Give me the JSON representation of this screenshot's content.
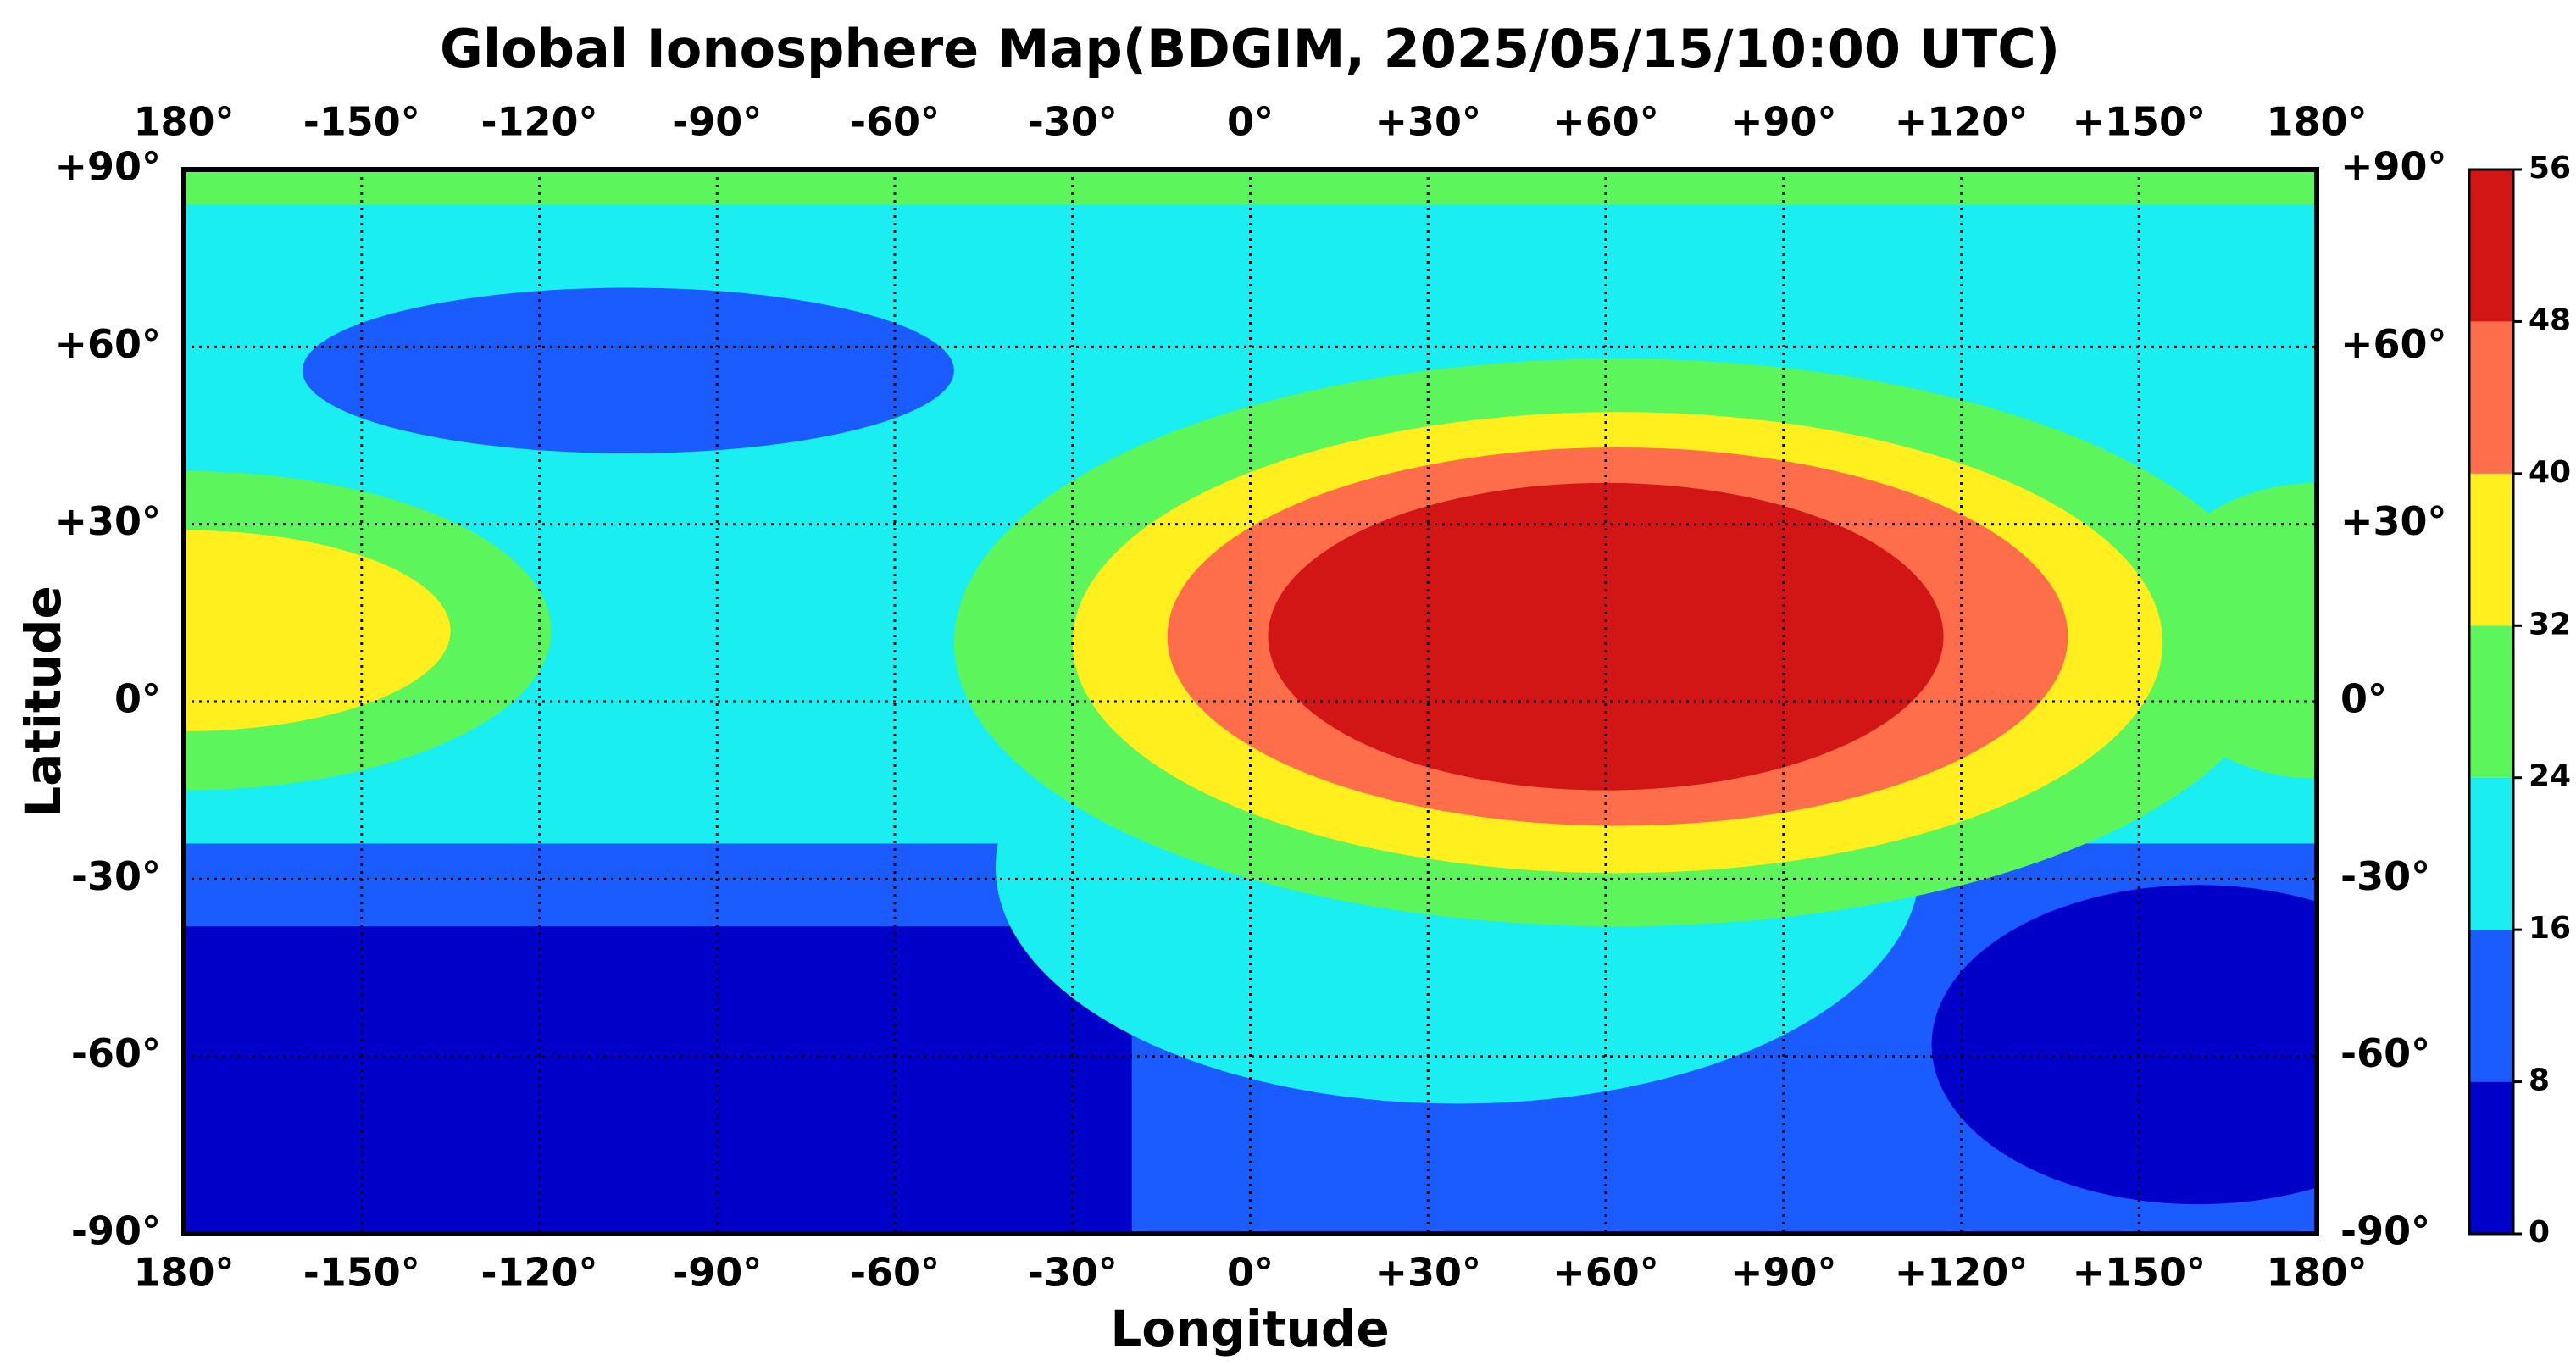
{
  "chart_data": {
    "type": "contour-map",
    "title": "Global Ionosphere Map(BDGIM, 2025/05/15/10:00 UTC)",
    "x_label": "Longitude",
    "y_label": "Latitude",
    "xlim": [
      -180,
      180
    ],
    "ylim": [
      -90,
      90
    ],
    "xticks": [
      {
        "value": -180,
        "label": "180°"
      },
      {
        "value": -150,
        "label": "-150°"
      },
      {
        "value": -120,
        "label": "-120°"
      },
      {
        "value": -90,
        "label": "-90°"
      },
      {
        "value": -60,
        "label": "-60°"
      },
      {
        "value": -30,
        "label": "-30°"
      },
      {
        "value": 0,
        "label": "0°"
      },
      {
        "value": 30,
        "label": "+30°"
      },
      {
        "value": 60,
        "label": "+60°"
      },
      {
        "value": 90,
        "label": "+90°"
      },
      {
        "value": 120,
        "label": "+120°"
      },
      {
        "value": 150,
        "label": "+150°"
      },
      {
        "value": 180,
        "label": "180°"
      }
    ],
    "yticks": [
      {
        "value": -90,
        "label": "-90°"
      },
      {
        "value": -60,
        "label": "-60°"
      },
      {
        "value": -30,
        "label": "-30°"
      },
      {
        "value": 0,
        "label": "0°"
      },
      {
        "value": 30,
        "label": "+30°"
      },
      {
        "value": 60,
        "label": "+60°"
      },
      {
        "value": 90,
        "label": "+90°"
      }
    ],
    "grid": true,
    "colorbar": {
      "ticks": [
        0,
        8,
        16,
        24,
        32,
        40,
        48,
        56
      ],
      "colors": [
        "#0000c8",
        "#1a5cff",
        "#1aeef0",
        "#5cf55c",
        "#ffef1f",
        "#ff6e4a",
        "#d21515"
      ]
    }
  }
}
